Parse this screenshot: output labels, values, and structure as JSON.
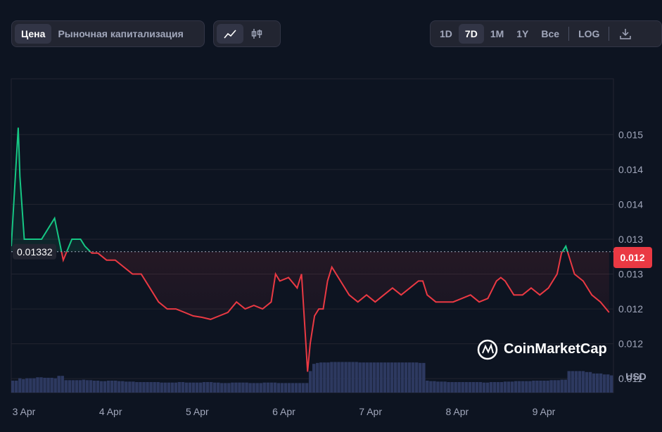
{
  "toolbar": {
    "left_tabs": [
      "Цена",
      "Рыночная капитализация"
    ],
    "ranges": [
      "1D",
      "7D",
      "1M",
      "1Y",
      "Все"
    ],
    "log_label": "LOG"
  },
  "watermark": "CoinMarketCap",
  "colors": {
    "up": "#16c784",
    "down": "#ea3943",
    "grid": "#222531",
    "bg": "#0d1421",
    "volume": "#2d3960"
  },
  "chart_data": {
    "type": "area",
    "reference_price": 0.01332,
    "reference_label": "0.01332",
    "current_price_label": "0.012",
    "currency": "USD",
    "x_ticks": [
      "3 Apr",
      "4 Apr",
      "5 Apr",
      "6 Apr",
      "7 Apr",
      "8 Apr",
      "9 Apr"
    ],
    "y_ticks": [
      "0.015",
      "0.014",
      "0.014",
      "0.013",
      "0.013",
      "0.012",
      "0.012",
      "0.011"
    ],
    "y_tick_values": [
      0.015,
      0.0145,
      0.014,
      0.0135,
      0.013,
      0.0125,
      0.012,
      0.0115
    ],
    "ylim": [
      0.0113,
      0.0158
    ],
    "x": [
      3.0,
      3.08,
      3.1,
      3.15,
      3.25,
      3.35,
      3.45,
      3.5,
      3.6,
      3.7,
      3.8,
      3.85,
      3.93,
      4.0,
      4.1,
      4.2,
      4.3,
      4.4,
      4.5,
      4.6,
      4.7,
      4.8,
      4.9,
      5.0,
      5.1,
      5.2,
      5.3,
      5.4,
      5.5,
      5.6,
      5.7,
      5.8,
      5.9,
      6.0,
      6.05,
      6.1,
      6.2,
      6.3,
      6.35,
      6.4,
      6.42,
      6.45,
      6.5,
      6.55,
      6.6,
      6.65,
      6.7,
      6.8,
      6.9,
      7.0,
      7.1,
      7.2,
      7.3,
      7.4,
      7.5,
      7.6,
      7.7,
      7.75,
      7.8,
      7.9,
      8.0,
      8.1,
      8.2,
      8.3,
      8.4,
      8.5,
      8.6,
      8.65,
      8.7,
      8.8,
      8.9,
      9.0,
      9.1,
      9.2,
      9.3,
      9.35,
      9.4,
      9.5,
      9.6,
      9.7,
      9.8,
      9.9
    ],
    "values": [
      0.0134,
      0.0151,
      0.0144,
      0.0135,
      0.0135,
      0.0135,
      0.0137,
      0.0138,
      0.0132,
      0.0135,
      0.0135,
      0.0134,
      0.0133,
      0.0133,
      0.0132,
      0.0132,
      0.0131,
      0.013,
      0.013,
      0.0128,
      0.0126,
      0.0125,
      0.0125,
      0.01245,
      0.0124,
      0.01238,
      0.01235,
      0.0124,
      0.01245,
      0.0126,
      0.0125,
      0.01255,
      0.0125,
      0.0126,
      0.013,
      0.0129,
      0.01295,
      0.0128,
      0.013,
      0.012,
      0.0116,
      0.012,
      0.0124,
      0.0125,
      0.0125,
      0.0129,
      0.0131,
      0.0129,
      0.0127,
      0.0126,
      0.0127,
      0.0126,
      0.0127,
      0.0128,
      0.0127,
      0.0128,
      0.0129,
      0.0129,
      0.0127,
      0.0126,
      0.0126,
      0.0126,
      0.01265,
      0.0127,
      0.0126,
      0.01265,
      0.0129,
      0.01295,
      0.0129,
      0.0127,
      0.0127,
      0.0128,
      0.0127,
      0.0128,
      0.013,
      0.0133,
      0.0134,
      0.013,
      0.0129,
      0.0127,
      0.0126,
      0.01245
    ],
    "volume": [
      0.25,
      0.3,
      0.28,
      0.3,
      0.32,
      0.31,
      0.3,
      0.35,
      0.26,
      0.26,
      0.27,
      0.26,
      0.25,
      0.24,
      0.25,
      0.24,
      0.23,
      0.22,
      0.22,
      0.22,
      0.21,
      0.21,
      0.22,
      0.21,
      0.21,
      0.22,
      0.21,
      0.2,
      0.21,
      0.21,
      0.2,
      0.2,
      0.21,
      0.21,
      0.2,
      0.2,
      0.2,
      0.2,
      0.2,
      0.2,
      0.45,
      0.6,
      0.62,
      0.63,
      0.63,
      0.64,
      0.64,
      0.64,
      0.64,
      0.63,
      0.63,
      0.63,
      0.63,
      0.63,
      0.63,
      0.63,
      0.62,
      0.25,
      0.24,
      0.23,
      0.22,
      0.22,
      0.22,
      0.22,
      0.21,
      0.22,
      0.22,
      0.23,
      0.23,
      0.24,
      0.24,
      0.25,
      0.25,
      0.26,
      0.27,
      0.27,
      0.45,
      0.45,
      0.43,
      0.4,
      0.38,
      0.36
    ]
  }
}
